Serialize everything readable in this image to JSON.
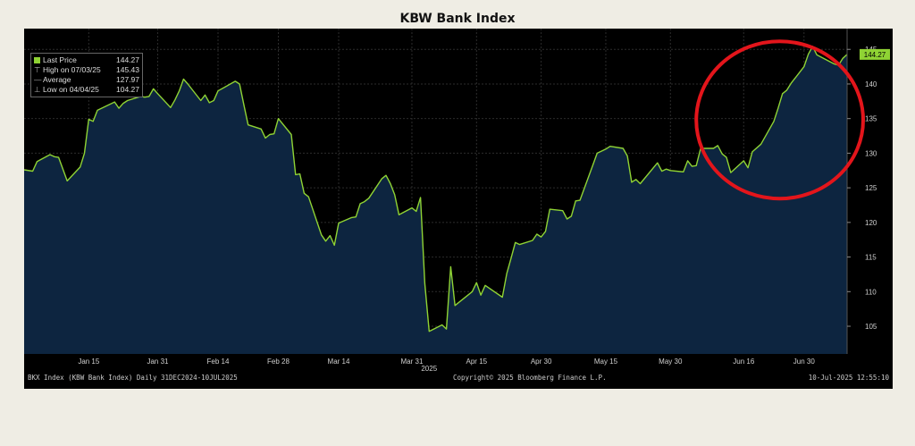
{
  "title": "KBW Bank Index",
  "legend": {
    "last_price_label": "Last Price",
    "last_price_value": "144.27",
    "high_label": "High on 07/03/25",
    "high_value": "145.43",
    "average_label": "Average",
    "average_value": "127.97",
    "low_label": "Low on 04/04/25",
    "low_value": "104.27"
  },
  "footer": {
    "left": "BKX Index (KBW Bank Index)  Daily 31DEC2024-10JUL2025",
    "center": "Copyright© 2025 Bloomberg Finance L.P.",
    "right": "10-Jul-2025 12:55:10"
  },
  "colors": {
    "line": "#8fd334",
    "fill": "#0d2540",
    "frame_bg": "#000000",
    "page_bg": "#efede4",
    "annotation": "#e3151b"
  },
  "annotation": "red ellipse around June-July rally",
  "chart_data": {
    "type": "area",
    "title": "KBW Bank Index",
    "x_tick_labels": [
      "Jan 15",
      "Jan 31",
      "Feb 14",
      "Feb 28",
      "Mar 14",
      "Mar 31",
      "Apr 15",
      "Apr 30",
      "May 15",
      "May 30",
      "Jun 16",
      "Jun 30"
    ],
    "x_year_label": "2025",
    "y_ticks": [
      105,
      110,
      115,
      120,
      125,
      130,
      135,
      140,
      145
    ],
    "ylim": [
      101,
      148
    ],
    "last_price_tag": "144.27",
    "grid": true,
    "legend_position": "top-left",
    "x": [
      "2024-12-31",
      "2025-01-02",
      "2025-01-03",
      "2025-01-06",
      "2025-01-07",
      "2025-01-08",
      "2025-01-10",
      "2025-01-13",
      "2025-01-14",
      "2025-01-15",
      "2025-01-16",
      "2025-01-17",
      "2025-01-21",
      "2025-01-22",
      "2025-01-23",
      "2025-01-24",
      "2025-01-27",
      "2025-01-28",
      "2025-01-29",
      "2025-01-30",
      "2025-01-31",
      "2025-02-03",
      "2025-02-04",
      "2025-02-05",
      "2025-02-06",
      "2025-02-07",
      "2025-02-10",
      "2025-02-11",
      "2025-02-12",
      "2025-02-13",
      "2025-02-14",
      "2025-02-18",
      "2025-02-19",
      "2025-02-20",
      "2025-02-21",
      "2025-02-24",
      "2025-02-25",
      "2025-02-26",
      "2025-02-27",
      "2025-02-28",
      "2025-03-03",
      "2025-03-04",
      "2025-03-05",
      "2025-03-06",
      "2025-03-07",
      "2025-03-10",
      "2025-03-11",
      "2025-03-12",
      "2025-03-13",
      "2025-03-14",
      "2025-03-17",
      "2025-03-18",
      "2025-03-19",
      "2025-03-20",
      "2025-03-21",
      "2025-03-24",
      "2025-03-25",
      "2025-03-26",
      "2025-03-27",
      "2025-03-28",
      "2025-03-31",
      "2025-04-01",
      "2025-04-02",
      "2025-04-03",
      "2025-04-04",
      "2025-04-07",
      "2025-04-08",
      "2025-04-09",
      "2025-04-10",
      "2025-04-11",
      "2025-04-14",
      "2025-04-15",
      "2025-04-16",
      "2025-04-17",
      "2025-04-21",
      "2025-04-22",
      "2025-04-23",
      "2025-04-24",
      "2025-04-25",
      "2025-04-28",
      "2025-04-29",
      "2025-04-30",
      "2025-05-01",
      "2025-05-02",
      "2025-05-05",
      "2025-05-06",
      "2025-05-07",
      "2025-05-08",
      "2025-05-09",
      "2025-05-12",
      "2025-05-13",
      "2025-05-14",
      "2025-05-15",
      "2025-05-16",
      "2025-05-19",
      "2025-05-20",
      "2025-05-21",
      "2025-05-22",
      "2025-05-23",
      "2025-05-27",
      "2025-05-28",
      "2025-05-29",
      "2025-05-30",
      "2025-06-02",
      "2025-06-03",
      "2025-06-04",
      "2025-06-05",
      "2025-06-06",
      "2025-06-09",
      "2025-06-10",
      "2025-06-11",
      "2025-06-12",
      "2025-06-13",
      "2025-06-16",
      "2025-06-17",
      "2025-06-18",
      "2025-06-20",
      "2025-06-23",
      "2025-06-24",
      "2025-06-25",
      "2025-06-26",
      "2025-06-27",
      "2025-06-30",
      "2025-07-01",
      "2025-07-02",
      "2025-07-03",
      "2025-07-07",
      "2025-07-08",
      "2025-07-09",
      "2025-07-10"
    ],
    "series": [
      {
        "values": [
          127.6,
          127.4,
          128.8,
          129.8,
          129.5,
          129.4,
          126.0,
          128.0,
          130.0,
          134.9,
          134.6,
          136.2,
          137.4,
          136.5,
          137.2,
          137.6,
          138.2,
          138.1,
          138.2,
          139.3,
          138.6,
          136.6,
          137.7,
          139.0,
          140.7,
          140.0,
          137.6,
          138.4,
          137.3,
          137.6,
          139.0,
          140.4,
          140.0,
          137.0,
          134.1,
          133.5,
          132.2,
          132.7,
          132.8,
          135.0,
          132.7,
          126.9,
          127.0,
          124.2,
          123.7,
          118.2,
          117.3,
          118.1,
          116.7,
          119.9,
          120.7,
          120.8,
          122.7,
          123.0,
          123.5,
          126.3,
          126.8,
          125.6,
          124.0,
          121.1,
          122.1,
          121.6,
          123.6,
          111.2,
          104.27,
          105.2,
          104.6,
          113.6,
          108.0,
          108.5,
          110.0,
          111.3,
          109.5,
          110.9,
          109.2,
          112.6,
          114.8,
          117.1,
          116.8,
          117.4,
          118.3,
          117.9,
          118.7,
          121.9,
          121.7,
          120.5,
          120.9,
          123.1,
          123.2,
          128.3,
          130.0,
          130.3,
          130.6,
          131.0,
          130.7,
          129.6,
          125.8,
          126.2,
          125.6,
          128.6,
          127.4,
          127.7,
          127.5,
          127.3,
          128.9,
          128.1,
          128.2,
          130.7,
          130.7,
          131.1,
          129.9,
          129.4,
          127.2,
          128.9,
          127.9,
          130.2,
          131.3,
          134.6,
          136.5,
          138.6,
          139.1,
          140.1,
          142.5,
          144.3,
          145.43,
          144.2,
          142.9,
          142.7,
          143.7,
          144.27
        ]
      }
    ]
  }
}
